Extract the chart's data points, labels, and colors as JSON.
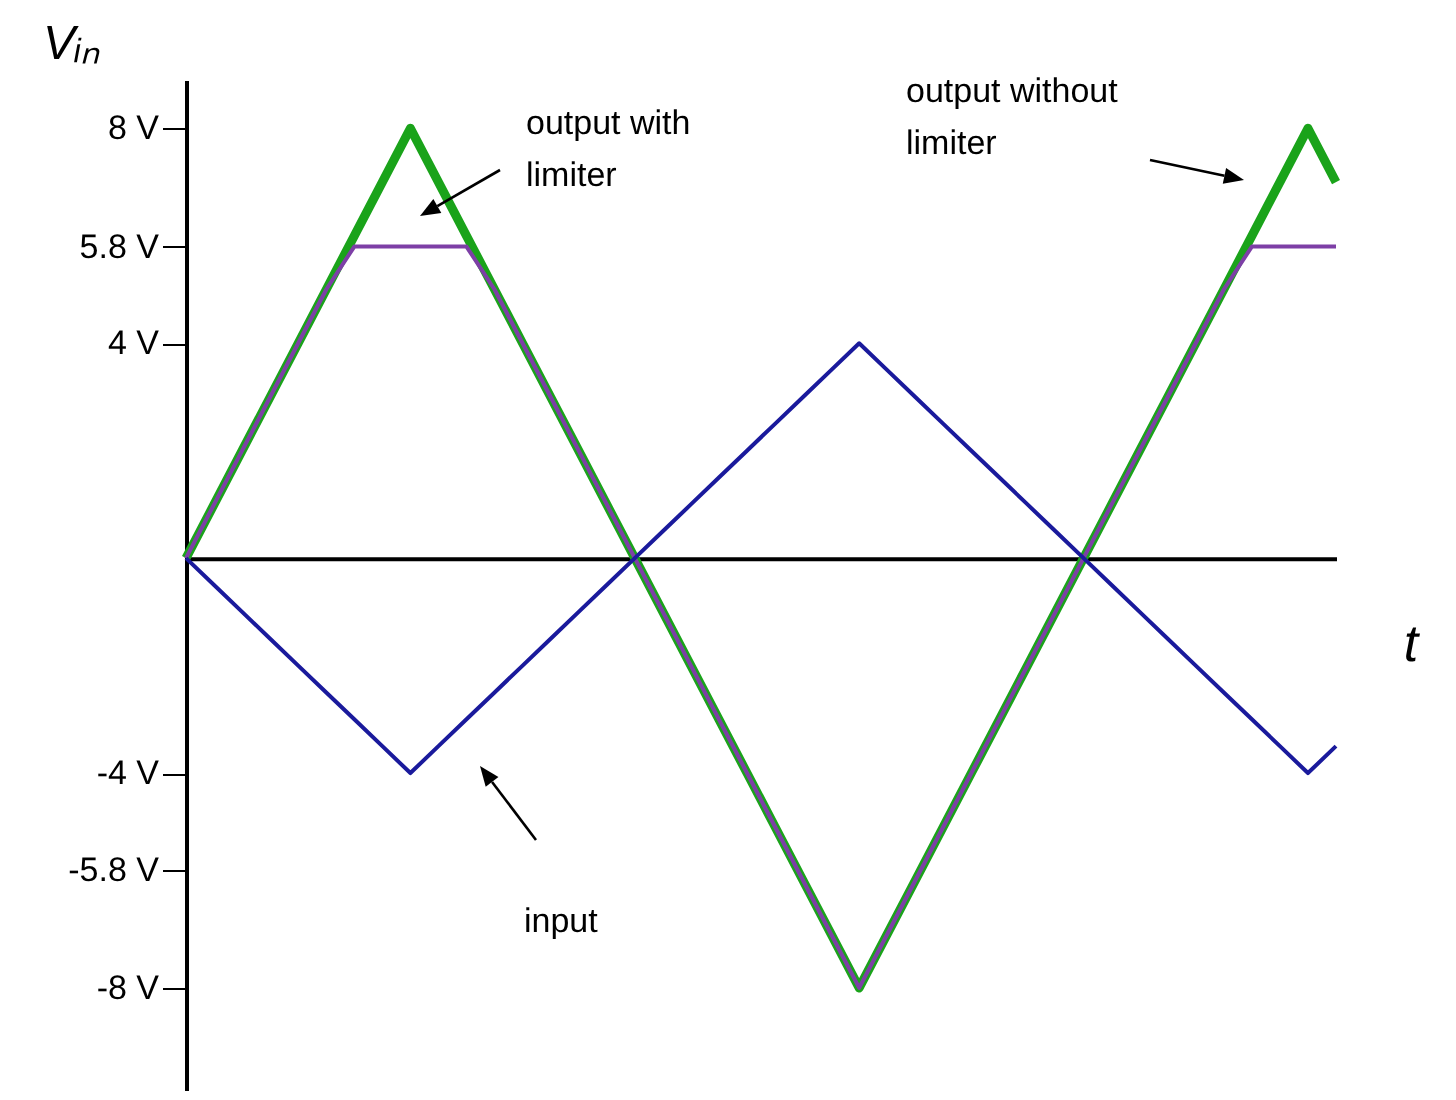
{
  "chart_data": {
    "type": "line",
    "xlabel": "t",
    "ylabel": "Vᵢₙ",
    "categories": [
      null,
      null,
      null,
      null,
      null,
      null,
      null,
      null,
      null,
      null,
      null,
      null,
      null,
      null,
      null,
      null,
      null,
      null,
      null,
      null,
      null,
      null,
      null,
      null,
      null,
      null,
      null,
      null,
      null,
      null,
      null,
      null,
      null,
      null,
      null,
      null,
      null,
      null,
      null,
      null,
      null,
      null
    ],
    "series": [
      {
        "color": "#1aa31a",
        "values": [
          0,
          1,
          2,
          3,
          4,
          5,
          6,
          7,
          8,
          7,
          6,
          5,
          4,
          3,
          2,
          1,
          0,
          -1,
          -2,
          -3,
          -4,
          -5,
          -6,
          -7,
          -8,
          -7,
          -6,
          -5,
          -4,
          -3,
          -2,
          -1,
          0,
          1,
          2,
          3,
          4,
          5,
          6,
          7,
          8,
          7
        ]
      },
      {
        "color": "#7d3fa6",
        "values": [
          0,
          1,
          2,
          3,
          4,
          5,
          5.8,
          5.8,
          5.8,
          5.8,
          5.8,
          5,
          4,
          3,
          2,
          1,
          0,
          -1,
          -2,
          -3,
          -4,
          -5,
          -6,
          -7,
          -8,
          -7,
          -6,
          -5,
          -4,
          -3,
          -2,
          -1,
          0,
          1,
          2,
          3,
          4,
          5,
          5.8,
          5.8,
          5.8,
          5.8
        ]
      },
      {
        "color": "#1a1a9c",
        "values": [
          0,
          -0.5,
          -1,
          -1.5,
          -2,
          -2.5,
          -3,
          -3.5,
          -4,
          -3.5,
          -3,
          -2.5,
          -2,
          -1.5,
          -1,
          -0.5,
          0,
          0.5,
          1,
          1.5,
          2,
          2.5,
          3,
          3.5,
          4,
          3.5,
          3,
          2.5,
          2,
          1.5,
          1,
          0.5,
          0,
          -0.5,
          -1,
          -1.5,
          -2,
          -2.5,
          -3,
          -3.5,
          -4,
          -3.5
        ]
      }
    ],
    "ylim": [
      -9.9,
      8.9
    ],
    "yticks": [
      {
        "value": 8,
        "label": "8 V"
      },
      {
        "value": 5.8,
        "label": "5.8 V"
      },
      {
        "value": 4,
        "label": "4 V"
      },
      {
        "value": -4,
        "label": "-4 V"
      },
      {
        "value": -5.8,
        "label": "-5.8 V"
      },
      {
        "value": -8,
        "label": "-8 V"
      }
    ],
    "tick_labels": "y",
    "annotations": [
      "output with limiter",
      "output without limiter",
      "input"
    ]
  }
}
